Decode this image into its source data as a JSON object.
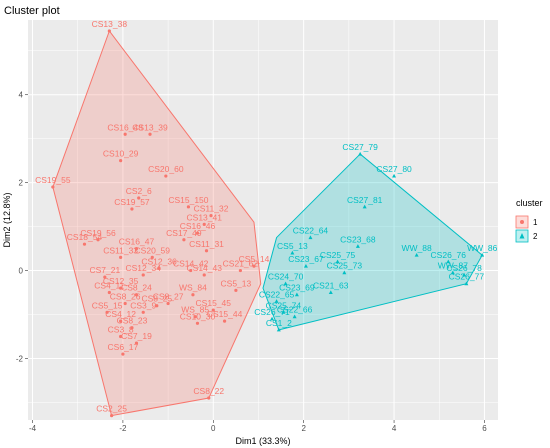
{
  "chart_data": {
    "type": "scatter",
    "title": "Cluster plot",
    "xlabel": "Dim1 (33.3%)",
    "ylabel": "Dim2 (12.8%)",
    "xlim": [
      -4.1,
      6.3
    ],
    "ylim": [
      -3.4,
      5.7
    ],
    "xticks": [
      -4,
      -2,
      0,
      2,
      4,
      6
    ],
    "yticks": [
      -2,
      0,
      2,
      4
    ],
    "grid": true,
    "legend": {
      "title": "cluster",
      "position": "right",
      "entries": [
        "1",
        "2"
      ]
    },
    "colors": {
      "1": "#F8766D",
      "2": "#00BFC4"
    },
    "hull": {
      "1": [
        [
          -2.3,
          5.45
        ],
        [
          0.9,
          1.1
        ],
        [
          1.05,
          -0.3
        ],
        [
          -0.1,
          -2.9
        ],
        [
          -2.25,
          -3.3
        ],
        [
          -3.55,
          1.9
        ]
      ],
      "2": [
        [
          3.25,
          2.65
        ],
        [
          5.95,
          0.35
        ],
        [
          5.6,
          -0.3
        ],
        [
          1.45,
          -1.35
        ],
        [
          1.1,
          -0.4
        ],
        [
          1.4,
          0.75
        ]
      ]
    },
    "series": [
      {
        "name": "1",
        "points": [
          {
            "x": -2.3,
            "y": 5.45,
            "label": "CS13_38"
          },
          {
            "x": -1.95,
            "y": 3.1,
            "label": "CS16_48"
          },
          {
            "x": -1.4,
            "y": 3.1,
            "label": "CS13_39"
          },
          {
            "x": -2.05,
            "y": 2.5,
            "label": "CS10_29"
          },
          {
            "x": -1.05,
            "y": 2.15,
            "label": "CS20_60"
          },
          {
            "x": -3.55,
            "y": 1.9,
            "label": "CS19_55"
          },
          {
            "x": -1.8,
            "y": 1.4,
            "label": "CS19_57"
          },
          {
            "x": -1.65,
            "y": 1.65,
            "label": "CS2_6"
          },
          {
            "x": -0.55,
            "y": 1.45,
            "label": "CS15_150"
          },
          {
            "x": -0.05,
            "y": 1.25,
            "label": "CS11_32"
          },
          {
            "x": -0.2,
            "y": 1.05,
            "label": "CS13_41"
          },
          {
            "x": -0.35,
            "y": 0.85,
            "label": "CS16_46"
          },
          {
            "x": -0.65,
            "y": 0.7,
            "label": "CS17_49"
          },
          {
            "x": -0.15,
            "y": 0.45,
            "label": "CS11_31"
          },
          {
            "x": -2.55,
            "y": 0.7,
            "label": "CS19_56"
          },
          {
            "x": -2.85,
            "y": 0.6,
            "label": "CS18_54"
          },
          {
            "x": -1.7,
            "y": 0.5,
            "label": "CS16_47"
          },
          {
            "x": -2.05,
            "y": 0.3,
            "label": "CS11_33"
          },
          {
            "x": -1.35,
            "y": 0.3,
            "label": "CS20_59"
          },
          {
            "x": -2.4,
            "y": -0.15,
            "label": "CS7_21"
          },
          {
            "x": -2.05,
            "y": -0.4,
            "label": "CS12_35"
          },
          {
            "x": -1.55,
            "y": -0.1,
            "label": "CS12_34"
          },
          {
            "x": -1.2,
            "y": 0.05,
            "label": "CS12_36"
          },
          {
            "x": -0.5,
            "y": 0.0,
            "label": "CS14_42"
          },
          {
            "x": -0.2,
            "y": -0.1,
            "label": "CS14_43"
          },
          {
            "x": -2.3,
            "y": -0.5,
            "label": "CS4_11"
          },
          {
            "x": -1.7,
            "y": -0.55,
            "label": "CS8_24"
          },
          {
            "x": -1.95,
            "y": -0.75,
            "label": "CS8_26"
          },
          {
            "x": -1.25,
            "y": -0.8,
            "label": "CS8_25"
          },
          {
            "x": -1.0,
            "y": -0.75,
            "label": "CS8_27"
          },
          {
            "x": -0.45,
            "y": -0.55,
            "label": "WS_84"
          },
          {
            "x": 0.6,
            "y": 0.0,
            "label": "CS21_62"
          },
          {
            "x": 0.9,
            "y": 0.1,
            "label": "CS5_14"
          },
          {
            "x": -2.05,
            "y": -1.15,
            "label": "CS4_12"
          },
          {
            "x": -1.55,
            "y": -0.95,
            "label": "CS3_9"
          },
          {
            "x": -2.35,
            "y": -0.95,
            "label": "CS5_15"
          },
          {
            "x": -1.8,
            "y": -1.3,
            "label": "CS8_23"
          },
          {
            "x": -2.05,
            "y": -1.5,
            "label": "CS3_8"
          },
          {
            "x": -1.7,
            "y": -1.65,
            "label": "CS7_19"
          },
          {
            "x": -2.0,
            "y": -1.9,
            "label": "CS6_17"
          },
          {
            "x": 0.0,
            "y": -0.9,
            "label": "CS15_45"
          },
          {
            "x": -0.4,
            "y": -1.05,
            "label": "WS_85"
          },
          {
            "x": -0.35,
            "y": -1.2,
            "label": "CS10_30"
          },
          {
            "x": 0.25,
            "y": -1.15,
            "label": "CS15_44"
          },
          {
            "x": 0.5,
            "y": -0.45,
            "label": "CS5_13"
          },
          {
            "x": -2.25,
            "y": -3.3,
            "label": "CS2_25"
          },
          {
            "x": -0.1,
            "y": -2.9,
            "label": "CS8_22"
          }
        ]
      },
      {
        "name": "2",
        "points": [
          {
            "x": 3.25,
            "y": 2.65,
            "label": "CS27_79"
          },
          {
            "x": 4.0,
            "y": 2.15,
            "label": "CS27_80"
          },
          {
            "x": 3.35,
            "y": 1.45,
            "label": "CS27_81"
          },
          {
            "x": 2.15,
            "y": 0.75,
            "label": "CS22_64"
          },
          {
            "x": 1.75,
            "y": 0.4,
            "label": "CS5_13"
          },
          {
            "x": 3.2,
            "y": 0.55,
            "label": "CS23_68"
          },
          {
            "x": 2.05,
            "y": 0.1,
            "label": "CS23_67"
          },
          {
            "x": 2.75,
            "y": 0.2,
            "label": "CS25_75"
          },
          {
            "x": 2.9,
            "y": -0.05,
            "label": "CS25_73"
          },
          {
            "x": 1.6,
            "y": -0.3,
            "label": "CS24_70"
          },
          {
            "x": 1.85,
            "y": -0.55,
            "label": "CS23_69"
          },
          {
            "x": 2.6,
            "y": -0.5,
            "label": "CS21_63"
          },
          {
            "x": 1.4,
            "y": -0.7,
            "label": "CS22_65"
          },
          {
            "x": 1.55,
            "y": -0.95,
            "label": "CS25_74"
          },
          {
            "x": 1.8,
            "y": -1.05,
            "label": "CS22_66"
          },
          {
            "x": 1.3,
            "y": -1.1,
            "label": "CS26_71"
          },
          {
            "x": 1.45,
            "y": -1.35,
            "label": "CS1_2"
          },
          {
            "x": 4.5,
            "y": 0.35,
            "label": "WW_88"
          },
          {
            "x": 5.2,
            "y": 0.2,
            "label": "CS26_76"
          },
          {
            "x": 5.95,
            "y": 0.35,
            "label": "WW_86"
          },
          {
            "x": 5.3,
            "y": -0.05,
            "label": "WW_87"
          },
          {
            "x": 5.55,
            "y": -0.1,
            "label": "CS26_78"
          },
          {
            "x": 5.6,
            "y": -0.3,
            "label": "CS26_77"
          }
        ]
      }
    ]
  }
}
